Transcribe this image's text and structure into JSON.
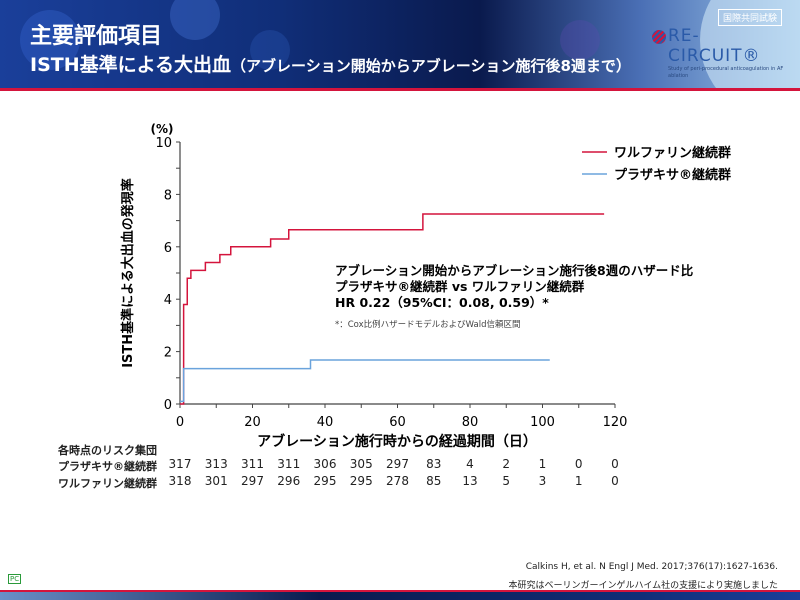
{
  "header": {
    "title": "主要評価項目",
    "subtitle_main": "ISTH基準による大出血",
    "subtitle_paren": "（アブレーション開始からアブレーション施行後8週まで）",
    "badge": "国際共同試験",
    "logo_name": "RE-CIRCUIT®",
    "logo_sub": "Study of peri-procedural anticoagulation in AF ablation"
  },
  "chart_data": {
    "type": "line",
    "step": true,
    "ylabel": "ISTH基準による大出血の発現率",
    "yunit": "(%)",
    "xlabel": "アブレーション施行時からの経過期間（日）",
    "xlim": [
      0,
      120
    ],
    "ylim": [
      0,
      10
    ],
    "xticks": [
      0,
      20,
      40,
      60,
      80,
      100,
      120
    ],
    "yticks": [
      0,
      2,
      4,
      6,
      8,
      10
    ],
    "legend_position": "top-right",
    "series": [
      {
        "name": "ワルファリン継続群",
        "color": "#d4143c",
        "points": [
          [
            0,
            0
          ],
          [
            1,
            3.8
          ],
          [
            2,
            4.8
          ],
          [
            3,
            5.1
          ],
          [
            7,
            5.4
          ],
          [
            11,
            5.7
          ],
          [
            14,
            6.0
          ],
          [
            25,
            6.3
          ],
          [
            30,
            6.65
          ],
          [
            67,
            7.25
          ],
          [
            117,
            7.25
          ]
        ]
      },
      {
        "name": "プラザキサ®継続群",
        "color": "#6aa3dc",
        "points": [
          [
            0,
            0.1
          ],
          [
            1,
            1.35
          ],
          [
            36,
            1.68
          ],
          [
            102,
            1.68
          ]
        ]
      }
    ],
    "annotation": {
      "line1": "アブレーション開始からアブレーション施行後8週のハザード比",
      "line2": "プラザキサ®継続群 vs ワルファリン継続群",
      "line3": "HR 0.22（95%CI：0.08, 0.59）*",
      "note": "*：Cox比例ハザードモデルおよびWald信頼区間"
    }
  },
  "risk_table": {
    "title": "各時点のリスク集団",
    "rows": [
      {
        "label": "プラザキサ®継続群",
        "values": [
          "317",
          "313",
          "311",
          "311",
          "306",
          "305",
          "297",
          "83",
          "4",
          "2",
          "1",
          "0",
          "0"
        ]
      },
      {
        "label": "ワルファリン継続群",
        "values": [
          "318",
          "301",
          "297",
          "296",
          "295",
          "295",
          "278",
          "85",
          "13",
          "5",
          "3",
          "1",
          "0"
        ]
      }
    ]
  },
  "footer": {
    "citation": "Calkins H, et al. N Engl J Med. 2017;376(17):1627-1636.",
    "support": "本研究はベーリンガーインゲルハイム社の支援により実施しました",
    "pc": "PC"
  }
}
